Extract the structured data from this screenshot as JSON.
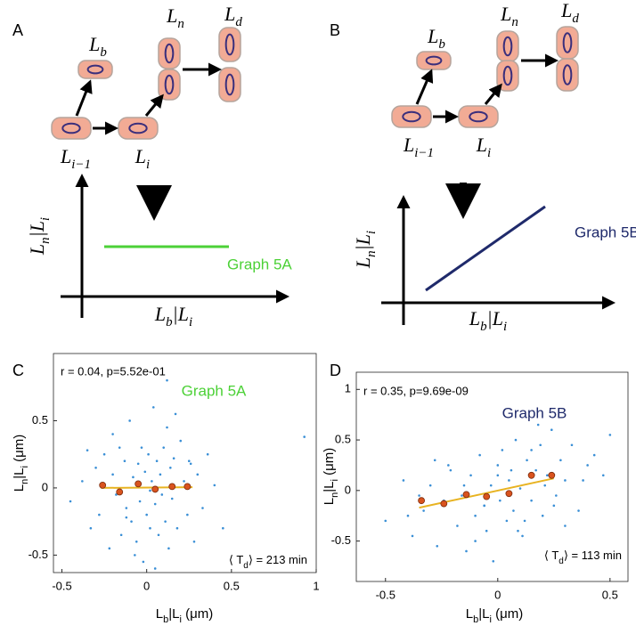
{
  "panels": [
    {
      "letter": "A",
      "cell_labels": [
        [
          "L",
          "b"
        ],
        [
          "L",
          "n"
        ],
        [
          "L",
          "d"
        ],
        [
          "L",
          "i−1"
        ],
        [
          "L",
          "i"
        ]
      ],
      "y_axis_label": [
        "L",
        "n",
        "|L",
        "i"
      ],
      "x_axis_label": [
        "L",
        "b",
        "|L",
        "i"
      ],
      "graph_label": "Graph 5A",
      "line_color": "#4cd137"
    },
    {
      "letter": "B",
      "cell_labels": [
        [
          "L",
          "b"
        ],
        [
          "L",
          "n"
        ],
        [
          "L",
          "d"
        ],
        [
          "L",
          "i−1"
        ],
        [
          "L",
          "i"
        ]
      ],
      "y_axis_label": [
        "L",
        "n",
        "|L",
        "i"
      ],
      "x_axis_label": [
        "L",
        "b",
        "|L",
        "i"
      ],
      "graph_label": "Graph 5B",
      "line_color": "#1f2a6b"
    }
  ],
  "chart_data": [
    {
      "type": "scatter",
      "letter": "C",
      "stats": "r = 0.04, p=5.52e-01",
      "graph_label": "Graph 5A",
      "label_color": "#4cd137",
      "period": [
        "⟨ T",
        "d",
        "⟩ = 213 min"
      ],
      "xlabel": [
        "L",
        "b",
        "|L",
        "i",
        " (μm)"
      ],
      "ylabel": [
        "L",
        "n",
        "|L",
        "i",
        " (μm)"
      ],
      "xlim": [
        -0.55,
        1.0
      ],
      "ylim": [
        -0.63,
        1.0
      ],
      "xticks": [
        -0.5,
        0,
        0.5,
        1
      ],
      "yticks": [
        -0.5,
        0,
        0.5
      ],
      "points": {
        "color": "#3a8fd6",
        "x": [
          -0.45,
          -0.38,
          -0.33,
          -0.3,
          -0.28,
          -0.25,
          -0.22,
          -0.2,
          -0.18,
          -0.16,
          -0.15,
          -0.13,
          -0.12,
          -0.1,
          -0.09,
          -0.08,
          -0.06,
          -0.05,
          -0.04,
          -0.03,
          -0.02,
          -0.01,
          0,
          0.01,
          0.02,
          0.03,
          0.04,
          0.05,
          0.06,
          0.07,
          0.08,
          0.09,
          0.1,
          0.11,
          0.12,
          0.13,
          0.14,
          0.15,
          0.16,
          0.18,
          0.2,
          0.22,
          0.24,
          0.26,
          0.28,
          0.3,
          0.33,
          0.36,
          0.4,
          0.45,
          0.93,
          -0.35,
          -0.2,
          -0.07,
          0.05,
          0.12,
          0.02,
          -0.12,
          0.17,
          0.25
        ],
        "y": [
          -0.1,
          0.05,
          -0.3,
          0.15,
          -0.2,
          0.25,
          -0.45,
          0.1,
          -0.05,
          0.3,
          -0.35,
          0.2,
          -0.15,
          0.5,
          -0.25,
          0.08,
          -0.4,
          0.18,
          -0.1,
          0.3,
          -0.55,
          0.12,
          -0.2,
          0.25,
          -0.3,
          0.05,
          0.6,
          -0.12,
          0.2,
          -0.35,
          0.1,
          -0.05,
          0.3,
          -0.25,
          0.8,
          -0.45,
          0.15,
          -0.08,
          0.22,
          -0.3,
          0.35,
          0.05,
          -0.2,
          0.18,
          -0.4,
          0.1,
          -0.15,
          0.25,
          0.02,
          -0.3,
          0.38,
          0.28,
          0.4,
          -0.5,
          -0.6,
          0.45,
          -0.02,
          -0.22,
          0.55,
          0.2
        ]
      },
      "bin_means": {
        "color": "#d9531e",
        "x": [
          -0.26,
          -0.16,
          -0.05,
          0.05,
          0.15,
          0.24
        ],
        "y": [
          0.02,
          -0.03,
          0.03,
          -0.01,
          0.01,
          0.01
        ]
      },
      "fit": {
        "color": "#e8b321",
        "x": [
          -0.27,
          0.27
        ],
        "y": [
          0.0,
          0.005
        ]
      }
    },
    {
      "type": "scatter",
      "letter": "D",
      "stats": "r = 0.35, p=9.69e-09",
      "graph_label": "Graph 5B",
      "label_color": "#1f2a6b",
      "period": [
        "⟨ T",
        "d",
        "⟩ = 113 min"
      ],
      "xlabel": [
        "L",
        "b",
        "|L",
        "i",
        " (μm)"
      ],
      "ylabel": [
        "L",
        "n",
        "|L",
        "i",
        " (μm)"
      ],
      "xlim": [
        -0.63,
        0.58
      ],
      "ylim": [
        -0.9,
        1.17
      ],
      "xticks": [
        -0.5,
        0,
        0.5
      ],
      "yticks": [
        -0.5,
        0,
        0.5,
        1
      ],
      "points": {
        "color": "#3a8fd6",
        "x": [
          -0.5,
          -0.42,
          -0.38,
          -0.33,
          -0.3,
          -0.27,
          -0.24,
          -0.21,
          -0.18,
          -0.16,
          -0.14,
          -0.12,
          -0.1,
          -0.08,
          -0.06,
          -0.05,
          -0.03,
          -0.02,
          0,
          0.01,
          0.02,
          0.04,
          0.05,
          0.07,
          0.08,
          0.1,
          0.11,
          0.13,
          0.15,
          0.17,
          0.19,
          0.2,
          0.22,
          0.24,
          0.26,
          0.28,
          0.3,
          0.33,
          0.36,
          0.4,
          0.43,
          0.47,
          0.5,
          -0.35,
          -0.22,
          -0.1,
          0,
          0.12,
          0.18,
          0.25,
          -0.15,
          0.06,
          0.3,
          -0.28,
          0.38,
          -0.06,
          0.15,
          -0.4,
          0.21,
          0.09
        ],
        "y": [
          -0.3,
          0.1,
          -0.45,
          -0.2,
          0.05,
          -0.55,
          -0.1,
          0.2,
          -0.35,
          -0.05,
          -0.6,
          0.15,
          -0.25,
          0.35,
          -0.15,
          -0.4,
          0.05,
          -0.7,
          0.25,
          -0.1,
          0.4,
          -0.3,
          0.1,
          -0.2,
          0.5,
          0.02,
          -0.45,
          0.3,
          -0.1,
          0.2,
          0.45,
          -0.25,
          0.15,
          0.6,
          -0.05,
          0.3,
          0.1,
          0.45,
          -0.2,
          0.25,
          0.35,
          0.15,
          0.55,
          -0.05,
          0.25,
          -0.5,
          0.15,
          -0.3,
          0.65,
          -0.15,
          0.05,
          0.2,
          -0.35,
          0.3,
          0.1,
          -0.15,
          0.4,
          -0.25,
          0.05,
          -0.4
        ]
      },
      "bin_means": {
        "color": "#d9531e",
        "x": [
          -0.34,
          -0.24,
          -0.14,
          -0.05,
          0.05,
          0.15,
          0.24
        ],
        "y": [
          -0.1,
          -0.13,
          -0.04,
          -0.06,
          -0.03,
          0.15,
          0.15
        ]
      },
      "fit": {
        "color": "#e8b321",
        "x": [
          -0.35,
          0.25
        ],
        "y": [
          -0.17,
          0.12
        ]
      }
    }
  ]
}
